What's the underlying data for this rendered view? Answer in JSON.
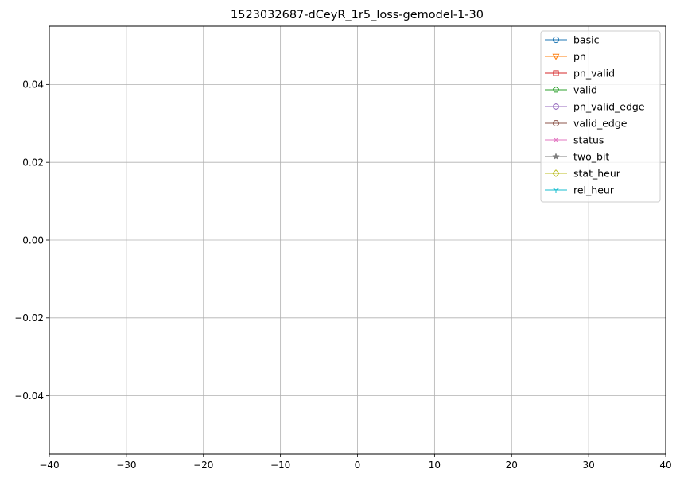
{
  "chart_data": {
    "type": "line",
    "title": "1523032687-dCeyR_1r5_loss-gemodel-1-30",
    "xlabel": "",
    "ylabel": "",
    "xlim": [
      -40,
      40
    ],
    "ylim": [
      -0.055,
      0.055
    ],
    "x_ticks": [
      -40,
      -30,
      -20,
      -10,
      0,
      10,
      20,
      30,
      40
    ],
    "x_tick_labels": [
      "−40",
      "−30",
      "−20",
      "−10",
      "0",
      "10",
      "20",
      "30",
      "40"
    ],
    "y_ticks": [
      -0.04,
      -0.02,
      0.0,
      0.02,
      0.04
    ],
    "y_tick_labels": [
      "−0.04",
      "−0.02",
      "0.00",
      "0.02",
      "0.04"
    ],
    "grid": true,
    "legend_position": "top-right",
    "series": [
      {
        "name": "basic",
        "color": "#1f77b4",
        "marker": "circle",
        "x": [],
        "y": []
      },
      {
        "name": "pn",
        "color": "#ff7f0e",
        "marker": "triangle-down",
        "x": [],
        "y": []
      },
      {
        "name": "pn_valid",
        "color": "#d62728",
        "marker": "square",
        "x": [],
        "y": []
      },
      {
        "name": "valid",
        "color": "#2ca02c",
        "marker": "pentagon",
        "x": [],
        "y": []
      },
      {
        "name": "pn_valid_edge",
        "color": "#9467bd",
        "marker": "hexagon",
        "x": [],
        "y": []
      },
      {
        "name": "valid_edge",
        "color": "#8c564b",
        "marker": "octagon",
        "x": [],
        "y": []
      },
      {
        "name": "status",
        "color": "#e377c2",
        "marker": "x",
        "x": [],
        "y": []
      },
      {
        "name": "two_bit",
        "color": "#7f7f7f",
        "marker": "star",
        "x": [],
        "y": []
      },
      {
        "name": "stat_heur",
        "color": "#bcbd22",
        "marker": "diamond",
        "x": [],
        "y": []
      },
      {
        "name": "rel_heur",
        "color": "#17becf",
        "marker": "tri-down",
        "x": [],
        "y": []
      }
    ]
  }
}
